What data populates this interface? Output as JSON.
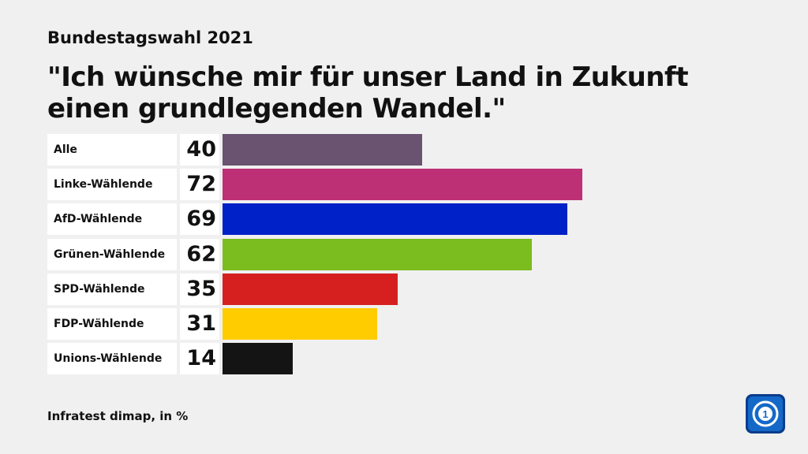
{
  "chart_data": {
    "type": "bar",
    "subtitle": "Bundestagswahl 2021",
    "title": "\"Ich wünsche mir für unser Land in Zukunft einen grundlegenden Wandel.\"",
    "categories": [
      "Alle",
      "Linke-Wählende",
      "AfD-Wählende",
      "Grünen-Wählende",
      "SPD-Wählende",
      "FDP-Wählende",
      "Unions-Wählende"
    ],
    "values": [
      40,
      72,
      69,
      62,
      35,
      31,
      14
    ],
    "colors": [
      "#6a5271",
      "#be3075",
      "#0021c8",
      "#7bbd1f",
      "#d62020",
      "#ffcc00",
      "#141414"
    ],
    "source": "Infratest dimap, in %"
  }
}
